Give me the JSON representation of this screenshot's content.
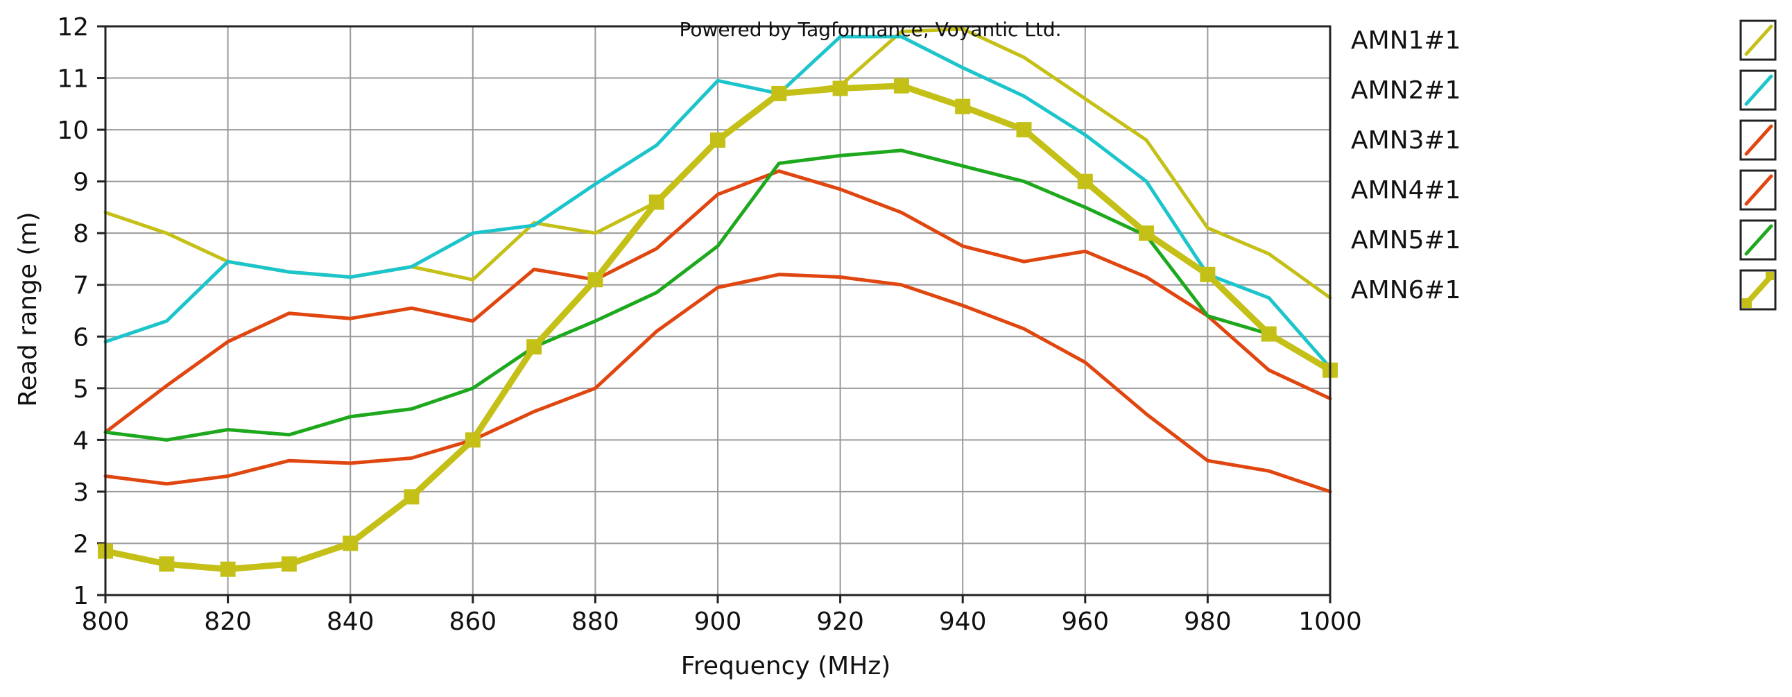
{
  "chart_data": {
    "type": "line",
    "watermark": "Powered by Tagformance, Voyantic Ltd.",
    "xlabel": "Frequency (MHz)",
    "ylabel": "Read range (m)",
    "xlim": [
      800,
      1000
    ],
    "ylim": [
      1,
      12
    ],
    "xticks": [
      "800",
      "820",
      "840",
      "860",
      "880",
      "900",
      "920",
      "940",
      "960",
      "980",
      "1000"
    ],
    "yticks": [
      "1",
      "2",
      "3",
      "4",
      "5",
      "6",
      "7",
      "8",
      "9",
      "10",
      "11",
      "12"
    ],
    "grid": true,
    "legend_position": "right",
    "x": [
      800,
      810,
      820,
      830,
      840,
      850,
      860,
      870,
      880,
      890,
      900,
      910,
      920,
      930,
      940,
      950,
      960,
      970,
      980,
      990,
      1000
    ],
    "series": [
      {
        "name": "AMN1#1",
        "color": "#c4c017",
        "marker": "none",
        "width": "thin",
        "values": [
          8.4,
          8.0,
          7.45,
          7.25,
          7.15,
          7.35,
          7.1,
          8.2,
          8.0,
          8.6,
          9.8,
          10.7,
          10.85,
          11.9,
          11.95,
          11.4,
          10.6,
          9.8,
          8.1,
          7.6,
          6.75
        ]
      },
      {
        "name": "AMN2#1",
        "color": "#1cc4cc",
        "marker": "none",
        "width": "thin",
        "values": [
          5.9,
          6.3,
          7.45,
          7.25,
          7.15,
          7.35,
          8.0,
          8.15,
          8.95,
          9.7,
          10.95,
          10.7,
          11.8,
          11.8,
          11.2,
          10.65,
          9.9,
          9.0,
          7.2,
          6.75,
          5.4
        ]
      },
      {
        "name": "AMN3#1",
        "color": "#e0460f",
        "marker": "none",
        "width": "thin",
        "values": [
          4.15,
          5.05,
          5.9,
          6.45,
          6.35,
          6.55,
          6.3,
          7.3,
          7.1,
          7.7,
          8.75,
          9.2,
          8.85,
          8.4,
          7.75,
          7.45,
          7.65,
          7.15,
          6.4,
          5.35,
          4.8
        ]
      },
      {
        "name": "AMN4#1",
        "color": "#e0460f",
        "marker": "none",
        "width": "thin",
        "values": [
          3.3,
          3.15,
          3.3,
          3.6,
          3.55,
          3.65,
          4.0,
          4.55,
          5.0,
          6.1,
          6.95,
          7.2,
          7.15,
          7.0,
          6.6,
          6.15,
          5.5,
          4.5,
          3.6,
          3.4,
          3.0
        ]
      },
      {
        "name": "AMN5#1",
        "color": "#1ea81e",
        "marker": "none",
        "width": "thin",
        "values": [
          4.15,
          4.0,
          4.2,
          4.1,
          4.45,
          4.6,
          5.0,
          5.8,
          6.3,
          6.85,
          7.75,
          9.35,
          9.5,
          9.6,
          9.3,
          9.0,
          8.5,
          7.95,
          6.4,
          6.05,
          5.35
        ]
      },
      {
        "name": "AMN6#1",
        "color": "#c4c017",
        "marker": "square",
        "width": "thick",
        "values": [
          1.85,
          1.6,
          1.5,
          1.6,
          2.0,
          2.9,
          4.0,
          5.8,
          7.1,
          8.6,
          9.8,
          10.7,
          10.8,
          10.85,
          10.45,
          10.0,
          9.0,
          8.0,
          7.2,
          6.05,
          5.35
        ]
      }
    ]
  }
}
